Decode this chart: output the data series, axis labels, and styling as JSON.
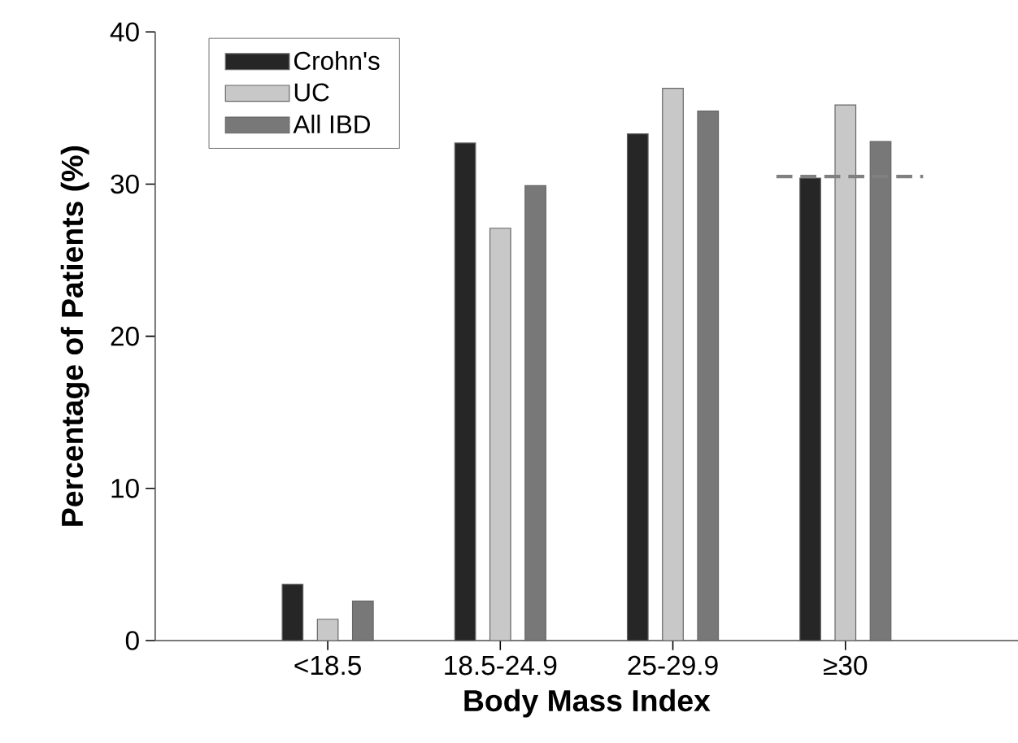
{
  "chart_data": {
    "type": "bar",
    "xlabel": "Body Mass Index",
    "ylabel": "Percentage of Patients (%)",
    "categories": [
      "<18.5",
      "18.5-24.9",
      "25-29.9",
      "≥30"
    ],
    "series": [
      {
        "name": "Crohn's",
        "color": "#262626",
        "values": [
          3.7,
          32.7,
          33.3,
          30.4
        ]
      },
      {
        "name": "UC",
        "color": "#c8c8c8",
        "values": [
          1.4,
          27.1,
          36.3,
          35.2
        ]
      },
      {
        "name": "All IBD",
        "color": "#787878",
        "values": [
          2.6,
          29.9,
          34.8,
          32.8
        ]
      }
    ],
    "ylim": [
      0,
      40
    ],
    "yticks": [
      0,
      10,
      20,
      30,
      40
    ],
    "ref_lines": [
      {
        "axis": "y",
        "value": 30.5,
        "color": "#808080",
        "line_style": "dashed"
      }
    ],
    "legend": "top left",
    "grid": false
  }
}
